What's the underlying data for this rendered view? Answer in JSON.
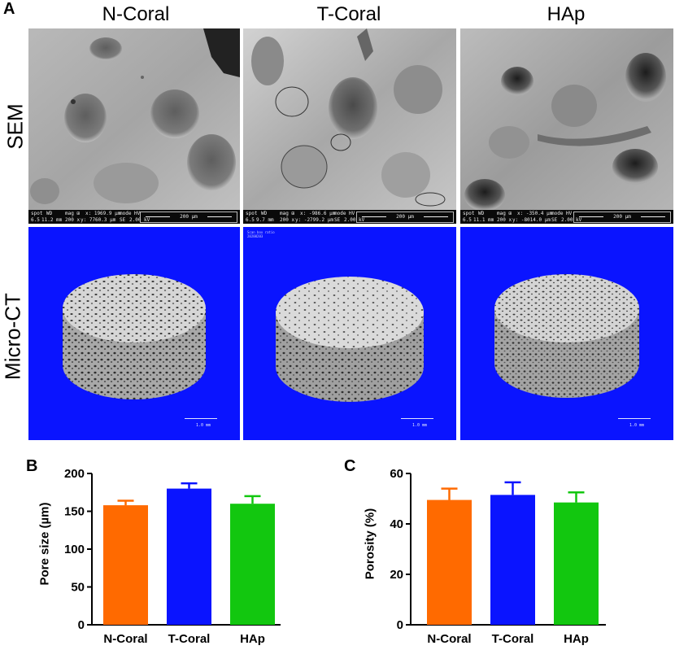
{
  "figure": {
    "panel_a_label": "A",
    "panel_b_label": "B",
    "panel_c_label": "C",
    "columns": [
      "N-Coral",
      "T-Coral",
      "HAp"
    ],
    "rows": [
      "SEM",
      "Micro-CT"
    ]
  },
  "sem_databars": [
    {
      "top": [
        "spot",
        "WD",
        "mag ⊞",
        "x: 1969.9 µm",
        "mode",
        "HV"
      ],
      "bottom": [
        "6.5",
        "11.2 mm",
        "200 x",
        "y: 7760.3 µm",
        "SE",
        "2.00 kV"
      ],
      "scale": "200 µm"
    },
    {
      "top": [
        "spot",
        "WD",
        "mag ⊞",
        "x: -986.6 µm",
        "mode",
        "HV"
      ],
      "bottom": [
        "6.5",
        "9.7 mm",
        "200 x",
        "y: -2799.2 µm",
        "SE",
        "2.00 kV"
      ],
      "scale": "200 µm"
    },
    {
      "top": [
        "spot",
        "WD",
        "mag ⊞",
        "x: -350.4 µm",
        "mode",
        "HV"
      ],
      "bottom": [
        "6.5",
        "11.1 mm",
        "200 x",
        "y: -8014.0 µm",
        "SE",
        "2.00 kV"
      ],
      "scale": "200 µm"
    }
  ],
  "ct_panels": [
    {
      "scale": "1.0 mm",
      "stamp": ""
    },
    {
      "scale": "1.0 mm",
      "stamp": "Scan box ratio\n20200203"
    },
    {
      "scale": "1.0 mm",
      "stamp": ""
    }
  ],
  "colors": {
    "n_coral": "#ff6a00",
    "t_coral": "#0a14ff",
    "hap": "#12c70f",
    "ct_background": "#0a14ff"
  },
  "chart_data": [
    {
      "type": "bar",
      "panel": "B",
      "categories": [
        "N-Coral",
        "T-Coral",
        "HAp"
      ],
      "values": [
        158,
        180,
        160
      ],
      "errors": [
        6,
        7,
        10
      ],
      "colors": [
        "#ff6a00",
        "#0a14ff",
        "#12c70f"
      ],
      "ylabel": "Pore size (µm)",
      "ylim": [
        0,
        200
      ],
      "yticks": [
        0,
        50,
        100,
        150,
        200
      ],
      "grid": false
    },
    {
      "type": "bar",
      "panel": "C",
      "categories": [
        "N-Coral",
        "T-Coral",
        "HAp"
      ],
      "values": [
        49.5,
        51.5,
        48.5
      ],
      "errors": [
        4.5,
        5,
        4
      ],
      "colors": [
        "#ff6a00",
        "#0a14ff",
        "#12c70f"
      ],
      "ylabel": "Porosity (%)",
      "ylim": [
        0,
        60
      ],
      "yticks": [
        0,
        20,
        40,
        60
      ],
      "grid": false
    }
  ]
}
